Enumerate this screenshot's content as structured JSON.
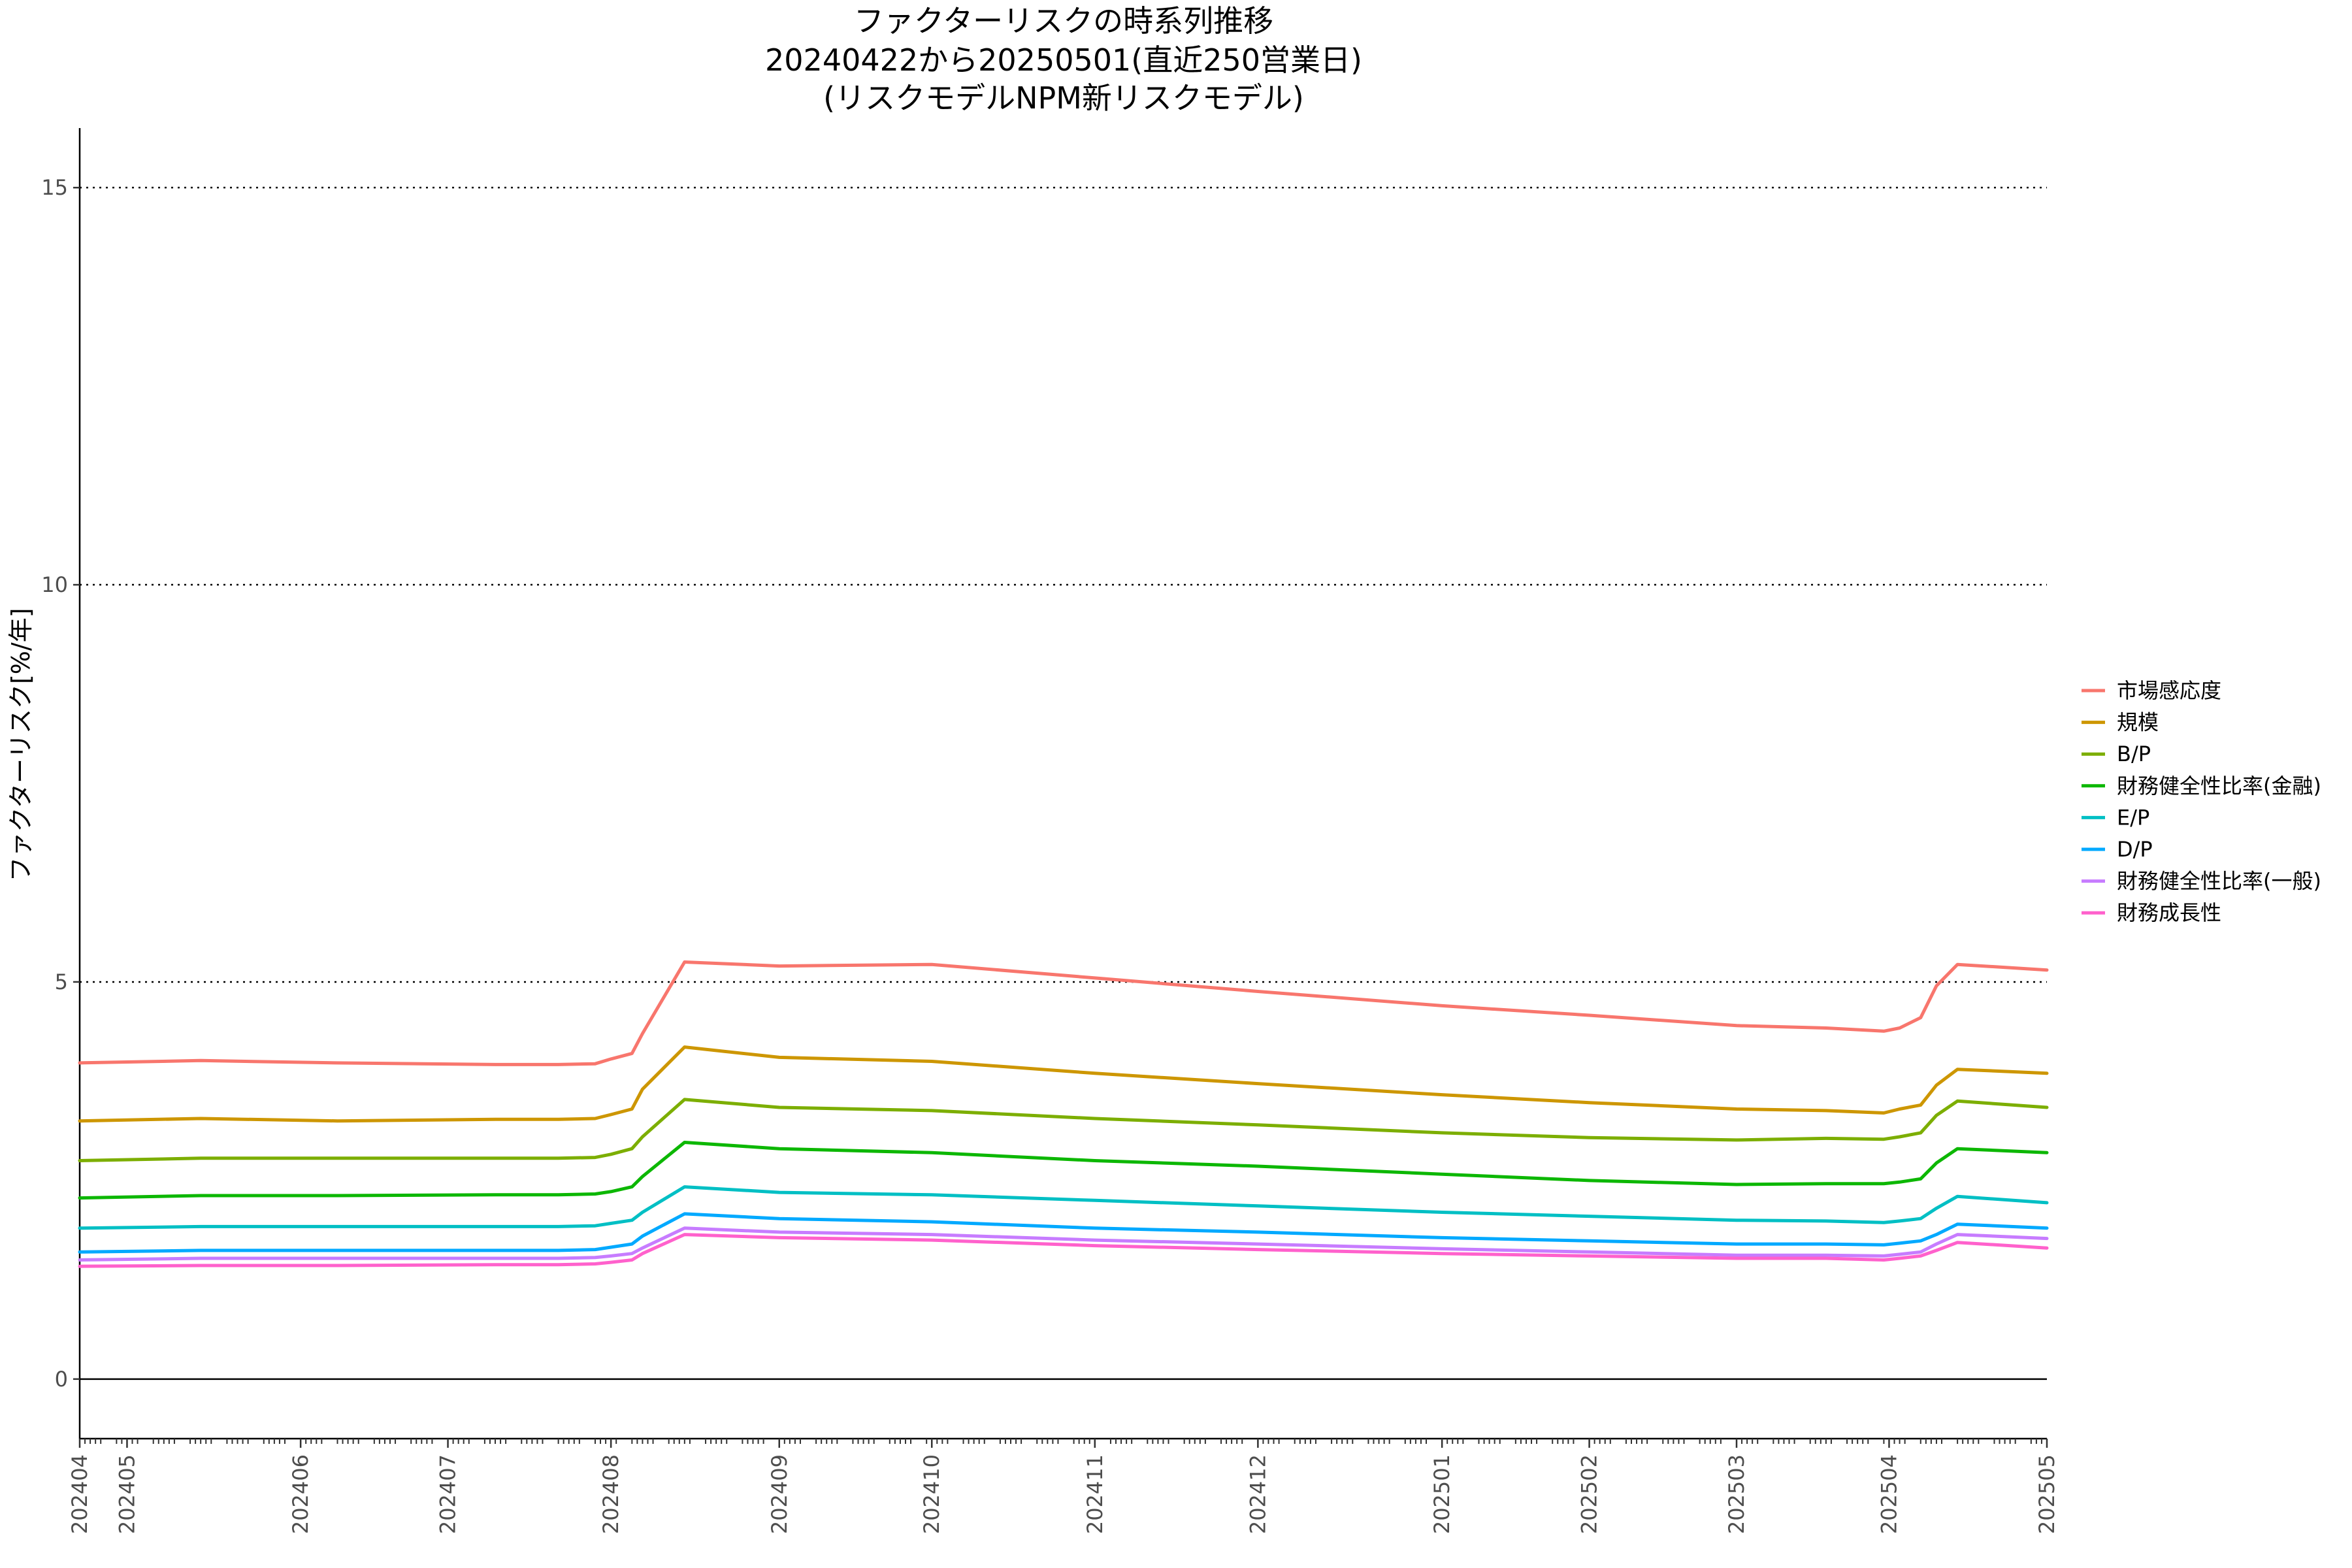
{
  "chart_data": {
    "type": "line",
    "title": [
      "ファクターリスクの時系列推移",
      "20240422から20250501(直近250営業日)",
      "(リスクモデルNPM新リスクモデル)"
    ],
    "xlabel": "",
    "ylabel": "ファクターリスク[%/年]",
    "ylim": [
      -0.75,
      15.75
    ],
    "y_ticks": [
      0,
      5,
      10,
      15
    ],
    "y_tick_labels": [
      "0",
      "5",
      "10",
      "15"
    ],
    "x_range": [
      "2024-04-22",
      "2025-05-01"
    ],
    "x_ticks": [
      {
        "date": "2024-04-22",
        "label": "202404"
      },
      {
        "date": "2024-05-01",
        "label": "202405"
      },
      {
        "date": "2024-06-03",
        "label": "202406"
      },
      {
        "date": "2024-07-01",
        "label": "202407"
      },
      {
        "date": "2024-08-01",
        "label": "202408"
      },
      {
        "date": "2024-09-02",
        "label": "202409"
      },
      {
        "date": "2024-10-01",
        "label": "202410"
      },
      {
        "date": "2024-11-01",
        "label": "202411"
      },
      {
        "date": "2024-12-02",
        "label": "202412"
      },
      {
        "date": "2025-01-06",
        "label": "202501"
      },
      {
        "date": "2025-02-03",
        "label": "202502"
      },
      {
        "date": "2025-03-03",
        "label": "202503"
      },
      {
        "date": "2025-04-01",
        "label": "202504"
      },
      {
        "date": "2025-05-01",
        "label": "202505"
      }
    ],
    "gridlines": [
      5,
      10,
      15
    ],
    "grid": "horizontal-dotted",
    "legend_position": "right",
    "x": [
      "2024-04-22",
      "2024-05-15",
      "2024-06-10",
      "2024-07-10",
      "2024-07-22",
      "2024-07-29",
      "2024-08-01",
      "2024-08-05",
      "2024-08-07",
      "2024-08-15",
      "2024-09-02",
      "2024-10-01",
      "2024-11-01",
      "2024-12-02",
      "2025-01-06",
      "2025-02-03",
      "2025-03-03",
      "2025-03-20",
      "2025-03-31",
      "2025-04-03",
      "2025-04-07",
      "2025-04-10",
      "2025-04-14",
      "2025-05-01"
    ],
    "series": [
      {
        "name": "市場感応度",
        "color": "#F8766D",
        "values": [
          3.98,
          4.01,
          3.98,
          3.96,
          3.96,
          3.97,
          4.03,
          4.1,
          4.35,
          5.25,
          5.2,
          5.22,
          5.05,
          4.88,
          4.7,
          4.58,
          4.45,
          4.42,
          4.38,
          4.42,
          4.55,
          4.95,
          5.22,
          5.15
        ]
      },
      {
        "name": "規模",
        "color": "#CD9600",
        "values": [
          3.25,
          3.28,
          3.25,
          3.27,
          3.27,
          3.28,
          3.33,
          3.4,
          3.65,
          4.18,
          4.05,
          4.0,
          3.85,
          3.72,
          3.58,
          3.48,
          3.4,
          3.38,
          3.35,
          3.4,
          3.45,
          3.7,
          3.9,
          3.85
        ]
      },
      {
        "name": "B/P",
        "color": "#7CAE00",
        "values": [
          2.75,
          2.78,
          2.78,
          2.78,
          2.78,
          2.79,
          2.83,
          2.9,
          3.05,
          3.52,
          3.42,
          3.38,
          3.28,
          3.2,
          3.1,
          3.04,
          3.01,
          3.03,
          3.02,
          3.05,
          3.1,
          3.32,
          3.5,
          3.42
        ]
      },
      {
        "name": "財務健全性比率(金融)",
        "color": "#0CB702",
        "values": [
          2.28,
          2.31,
          2.31,
          2.32,
          2.32,
          2.33,
          2.36,
          2.42,
          2.55,
          2.98,
          2.9,
          2.85,
          2.75,
          2.68,
          2.58,
          2.5,
          2.45,
          2.46,
          2.46,
          2.48,
          2.52,
          2.72,
          2.9,
          2.85
        ]
      },
      {
        "name": "E/P",
        "color": "#00BFC4",
        "values": [
          1.9,
          1.92,
          1.92,
          1.92,
          1.92,
          1.93,
          1.96,
          2.0,
          2.1,
          2.42,
          2.35,
          2.32,
          2.25,
          2.18,
          2.1,
          2.05,
          2.0,
          1.99,
          1.97,
          1.99,
          2.02,
          2.15,
          2.3,
          2.22
        ]
      },
      {
        "name": "D/P",
        "color": "#00A9FF",
        "values": [
          1.6,
          1.62,
          1.62,
          1.62,
          1.62,
          1.63,
          1.66,
          1.7,
          1.8,
          2.08,
          2.02,
          1.98,
          1.9,
          1.85,
          1.78,
          1.74,
          1.7,
          1.7,
          1.69,
          1.71,
          1.74,
          1.82,
          1.95,
          1.9
        ]
      },
      {
        "name": "財務健全性比率(一般)",
        "color": "#C77CFF",
        "values": [
          1.5,
          1.52,
          1.52,
          1.52,
          1.52,
          1.53,
          1.55,
          1.58,
          1.65,
          1.9,
          1.85,
          1.82,
          1.75,
          1.7,
          1.64,
          1.6,
          1.56,
          1.56,
          1.55,
          1.57,
          1.6,
          1.7,
          1.82,
          1.77
        ]
      },
      {
        "name": "財務成長性",
        "color": "#FF61CC",
        "values": [
          1.42,
          1.43,
          1.43,
          1.44,
          1.44,
          1.45,
          1.47,
          1.5,
          1.58,
          1.82,
          1.78,
          1.75,
          1.68,
          1.63,
          1.58,
          1.55,
          1.52,
          1.52,
          1.5,
          1.52,
          1.55,
          1.62,
          1.72,
          1.65
        ]
      }
    ]
  }
}
